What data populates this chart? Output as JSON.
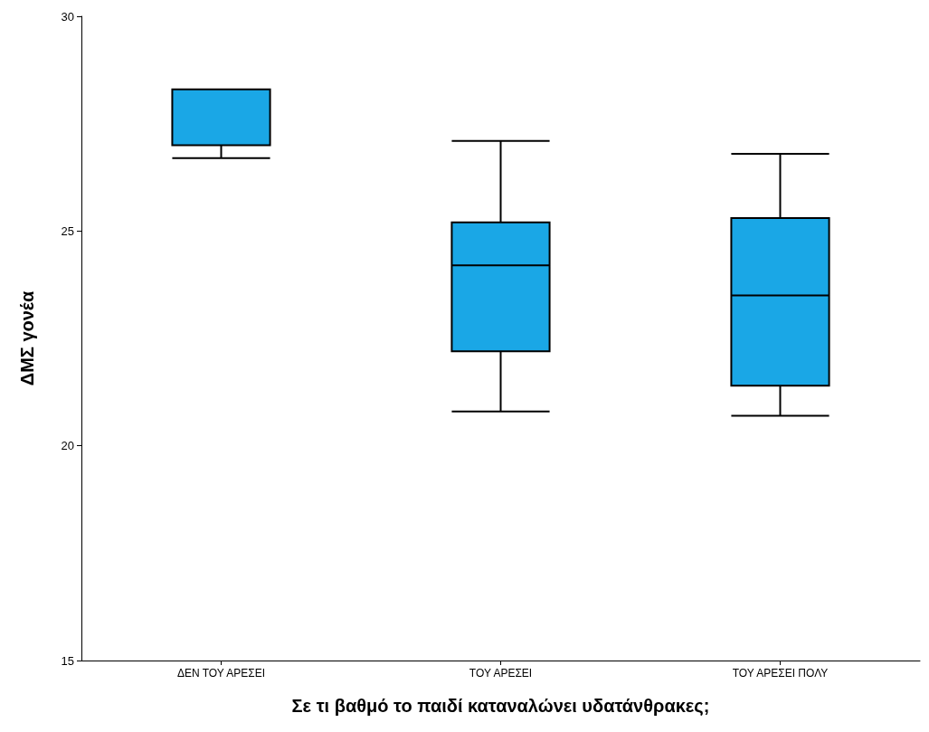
{
  "chart_data": {
    "type": "box",
    "xlabel": "Σε τι βαθμό το παιδί καταναλώνει υδατάνθρακες;",
    "ylabel": "ΔΜΣ γονέα",
    "categories": [
      "ΔΕΝ ΤΟΥ ΑΡΕΣΕΙ",
      "ΤΟΥ ΑΡΕΣΕΙ",
      "ΤΟΥ ΑΡΕΣΕΙ ΠΟΛΥ"
    ],
    "boxes": [
      {
        "low": 26.7,
        "q1": 27.0,
        "median": 27.0,
        "q3": 28.3,
        "high": 28.3
      },
      {
        "low": 20.8,
        "q1": 22.2,
        "median": 24.2,
        "q3": 25.2,
        "high": 27.1
      },
      {
        "low": 20.7,
        "q1": 21.4,
        "median": 23.5,
        "q3": 25.3,
        "high": 26.8
      }
    ],
    "color": "#1aa7e6",
    "ylim": [
      15,
      30
    ],
    "yticks": [
      15,
      20,
      25,
      30
    ],
    "grid": false
  }
}
